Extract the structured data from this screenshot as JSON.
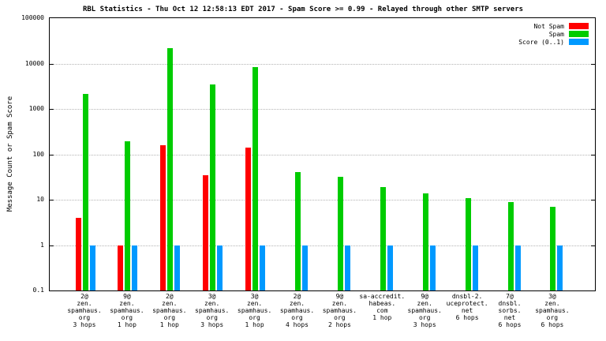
{
  "chart_data": {
    "type": "bar",
    "title": "RBL Statistics - Thu Oct 12 12:58:13 EDT 2017 - Spam Score >= 0.99 - Relayed through other SMTP servers",
    "ylabel": "Message Count or Spam Score",
    "xlabel": "",
    "y_scale": "log",
    "ylim": [
      0.1,
      100000
    ],
    "yticks": [
      "100000",
      "10000",
      "1000",
      "100",
      "10",
      "1",
      "0.1"
    ],
    "grid": "horizontal-dotted",
    "legend_position": "top-right-inside",
    "categories": [
      [
        "2@",
        "zen.",
        "spamhaus.",
        "org",
        "3 hops"
      ],
      [
        "9@",
        "zen.",
        "spamhaus.",
        "org",
        "1 hop"
      ],
      [
        "2@",
        "zen.",
        "spamhaus.",
        "org",
        "1 hop"
      ],
      [
        "3@",
        "zen.",
        "spamhaus.",
        "org",
        "3 hops"
      ],
      [
        "3@",
        "zen.",
        "spamhaus.",
        "org",
        "1 hop"
      ],
      [
        "2@",
        "zen.",
        "spamhaus.",
        "org",
        "4 hops"
      ],
      [
        "9@",
        "zen.",
        "spamhaus.",
        "org",
        "2 hops"
      ],
      [
        "sa-accredit.",
        "habeas.",
        "com",
        "1 hop"
      ],
      [
        "9@",
        "zen.",
        "spamhaus.",
        "org",
        "3 hops"
      ],
      [
        "dnsbl-2.",
        "uceprotect.",
        "net",
        "6 hops"
      ],
      [
        "7@",
        "dnsbl.",
        "sorbs.",
        "net",
        "6 hops"
      ],
      [
        "3@",
        "zen.",
        "spamhaus.",
        "org",
        "6 hops"
      ]
    ],
    "series": [
      {
        "name": "Not Spam",
        "color": "#ff0000",
        "values": [
          4,
          1,
          160,
          35,
          140,
          null,
          null,
          null,
          null,
          null,
          null,
          null
        ]
      },
      {
        "name": "Spam",
        "color": "#00cc00",
        "values": [
          2100,
          190,
          22000,
          3500,
          8500,
          40,
          32,
          19,
          14,
          11,
          9,
          7
        ]
      },
      {
        "name": "Score (0..1)",
        "color": "#0099ff",
        "values": [
          1,
          1,
          1,
          1,
          1,
          1,
          1,
          1,
          1,
          1,
          1,
          1
        ]
      }
    ]
  }
}
